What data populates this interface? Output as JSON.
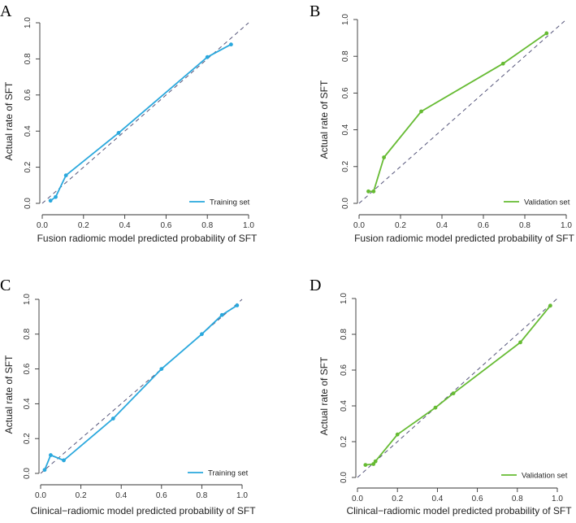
{
  "chart_data": [
    {
      "type": "line",
      "panel_label": "A",
      "xlabel": "Fusion radiomic model predicted probability of SFT",
      "ylabel": "Actual rate of SFT",
      "xlim": [
        0,
        1
      ],
      "ylim": [
        0,
        1
      ],
      "x_ticks": [
        "0.0",
        "0.2",
        "0.4",
        "0.6",
        "0.8",
        "1.0"
      ],
      "y_ticks": [
        "0.0",
        "0.2",
        "0.4",
        "0.6",
        "0.8",
        "1.0"
      ],
      "legend": "Training set",
      "legend_position": "bottom-right",
      "reference_line": "diagonal dashed (ideal)",
      "series": [
        {
          "name": "Training set",
          "color": "#2aa8dd",
          "x": [
            0.04,
            0.065,
            0.115,
            0.37,
            0.8,
            0.915
          ],
          "y": [
            0.015,
            0.035,
            0.155,
            0.39,
            0.81,
            0.88
          ]
        }
      ]
    },
    {
      "type": "line",
      "panel_label": "B",
      "xlabel": "Fusion radiomic model predicted probability of SFT",
      "ylabel": "Actual rate of SFT",
      "xlim": [
        0,
        1
      ],
      "ylim": [
        0,
        1
      ],
      "x_ticks": [
        "0.0",
        "0.2",
        "0.4",
        "0.6",
        "0.8",
        "1.0"
      ],
      "y_ticks": [
        "0.0",
        "0.2",
        "0.4",
        "0.6",
        "0.8",
        "1.0"
      ],
      "legend": "Validation set",
      "legend_position": "bottom-right",
      "reference_line": "diagonal dashed (ideal)",
      "series": [
        {
          "name": "Validation set",
          "color": "#66bb33",
          "x": [
            0.045,
            0.07,
            0.12,
            0.3,
            0.695,
            0.905
          ],
          "y": [
            0.065,
            0.065,
            0.25,
            0.5,
            0.76,
            0.925
          ]
        }
      ]
    },
    {
      "type": "line",
      "panel_label": "C",
      "xlabel": "Clinical−radiomic model predicted probability of SFT",
      "ylabel": "Actual rate of SFT",
      "xlim": [
        0,
        1
      ],
      "ylim": [
        0,
        1
      ],
      "x_ticks": [
        "0.0",
        "0.2",
        "0.4",
        "0.6",
        "0.8",
        "1.0"
      ],
      "y_ticks": [
        "0.0",
        "0.2",
        "0.4",
        "0.6",
        "0.8",
        "1.0"
      ],
      "legend": "Training set",
      "legend_position": "bottom-right",
      "reference_line": "diagonal dashed (ideal)",
      "series": [
        {
          "name": "Training set",
          "color": "#2aa8dd",
          "x": [
            0.02,
            0.05,
            0.115,
            0.36,
            0.6,
            0.8,
            0.9,
            0.975
          ],
          "y": [
            0.02,
            0.105,
            0.075,
            0.315,
            0.6,
            0.8,
            0.91,
            0.965
          ]
        }
      ]
    },
    {
      "type": "line",
      "panel_label": "D",
      "xlabel": "Clinical−radiomic model predicted probability of SFT",
      "ylabel": "Actual rate of SFT",
      "xlim": [
        0,
        1
      ],
      "ylim": [
        0,
        1
      ],
      "x_ticks": [
        "0.0",
        "0.2",
        "0.4",
        "0.6",
        "0.8",
        "1.0"
      ],
      "y_ticks": [
        "0.0",
        "0.2",
        "0.4",
        "0.6",
        "0.8",
        "1.0"
      ],
      "legend": "Validation set",
      "legend_position": "bottom-right",
      "reference_line": "diagonal dashed (ideal)",
      "series": [
        {
          "name": "Validation set",
          "color": "#66bb33",
          "x": [
            0.04,
            0.08,
            0.09,
            0.2,
            0.39,
            0.48,
            0.815,
            0.965
          ],
          "y": [
            0.07,
            0.075,
            0.09,
            0.24,
            0.39,
            0.47,
            0.755,
            0.96
          ]
        }
      ]
    }
  ]
}
